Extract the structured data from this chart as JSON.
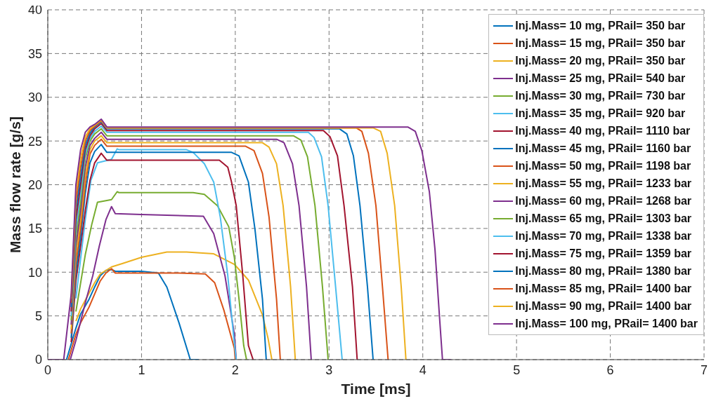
{
  "chart_data": {
    "type": "line",
    "xlabel": "Time [ms]",
    "ylabel": "Mass flow rate [g/s]",
    "xlim": [
      0,
      7
    ],
    "xticks": [
      0,
      1,
      2,
      3,
      4,
      5,
      6,
      7
    ],
    "ylim": [
      0,
      40
    ],
    "yticks": [
      0,
      5,
      10,
      15,
      20,
      25,
      30,
      35,
      40
    ],
    "grid": true,
    "legend": "top right",
    "marker": "none",
    "line_style": "solid",
    "series": [
      {
        "name": "Inj.Mass= 10 mg, PRail= 350 bar",
        "color": "#0072bd",
        "x": [
          0.2,
          0.3,
          0.35,
          0.44,
          0.5,
          0.56,
          0.62,
          0.68,
          0.72,
          1.0,
          1.18,
          1.27,
          1.4,
          1.52,
          1.61
        ],
        "values": [
          0,
          3.6,
          5.2,
          6.9,
          8.3,
          9.6,
          10.2,
          10.3,
          10.1,
          10.1,
          9.9,
          8.3,
          4.2,
          0,
          0
        ]
      },
      {
        "name": "Inj.Mass= 15 mg, PRail= 350 bar",
        "color": "#d95319",
        "x": [
          0.22,
          0.3,
          0.35,
          0.44,
          0.5,
          0.56,
          0.62,
          0.68,
          0.72,
          1.0,
          1.4,
          1.68,
          1.78,
          1.88,
          1.99,
          2.0
        ],
        "values": [
          0,
          2.9,
          4.2,
          6.0,
          7.5,
          9.0,
          9.9,
          10.4,
          9.9,
          9.9,
          9.9,
          9.8,
          8.8,
          5.6,
          1.3,
          0
        ]
      },
      {
        "name": "Inj.Mass= 20 mg, PRail= 350 bar",
        "color": "#edb120",
        "x": [
          0.3,
          0.35,
          0.44,
          0.5,
          0.56,
          0.68,
          0.8,
          1.0,
          1.27,
          1.48,
          1.77,
          1.99,
          2.14,
          2.29,
          2.35,
          2.39
        ],
        "values": [
          4.4,
          5.8,
          7.6,
          8.8,
          9.8,
          10.6,
          11,
          11.7,
          12.3,
          12.3,
          12.1,
          10.9,
          9.1,
          5.1,
          2.4,
          0
        ]
      },
      {
        "name": "Inj.Mass= 25 mg, PRail= 540 bar",
        "color": "#7e2f8e",
        "x": [
          0.24,
          0.3,
          0.4,
          0.48,
          0.55,
          0.62,
          0.68,
          0.72,
          1.0,
          1.66,
          1.77,
          1.89,
          1.99,
          2.01
        ],
        "values": [
          0,
          2.2,
          6.5,
          9.6,
          13,
          16,
          17.5,
          16.7,
          16.6,
          16.4,
          14.4,
          9.6,
          2.9,
          0
        ]
      },
      {
        "name": "Inj.Mass= 30 mg, PRail= 730 bar",
        "color": "#77ac30",
        "x": [
          0.3,
          0.4,
          0.47,
          0.53,
          0.68,
          0.74,
          0.76,
          1.0,
          1.55,
          1.67,
          1.81,
          1.93,
          1.99,
          2.04,
          2.09,
          2.12
        ],
        "values": [
          5.5,
          12,
          15.5,
          18,
          18.3,
          19.2,
          19.1,
          19.1,
          19.1,
          18.9,
          17.6,
          15.2,
          11.7,
          6.9,
          1.6,
          0
        ]
      },
      {
        "name": "Inj.Mass= 35 mg, PRail= 920 bar",
        "color": "#4dbeee",
        "x": [
          0.3,
          0.4,
          0.46,
          0.53,
          0.68,
          0.74,
          0.76,
          1.0,
          1.48,
          1.55,
          1.67,
          1.77,
          1.84,
          1.92,
          1.98,
          2.01
        ],
        "values": [
          7,
          16,
          20.5,
          22.5,
          22.9,
          24.1,
          24.0,
          24.0,
          24.0,
          23.7,
          22.4,
          20.3,
          16.3,
          9.6,
          2.9,
          0
        ]
      },
      {
        "name": "Inj.Mass= 40 mg, PRail= 1110 bar",
        "color": "#a2142f",
        "x": [
          0.25,
          0.3,
          0.35,
          0.4,
          0.45,
          0.5,
          0.57,
          0.63,
          1.83,
          1.92,
          1.96,
          2.01,
          2.08,
          2.14,
          2.19
        ],
        "values": [
          2,
          9,
          13,
          17,
          20.5,
          22.5,
          23.6,
          22.8,
          22.8,
          22.0,
          20.3,
          17.6,
          9.6,
          1.6,
          0
        ]
      },
      {
        "name": "Inj.Mass= 45 mg, PRail= 1160 bar",
        "color": "#0072bd",
        "x": [
          0.25,
          0.3,
          0.35,
          0.4,
          0.45,
          0.5,
          0.57,
          0.63,
          1.96,
          2.04,
          2.14,
          2.21,
          2.29,
          2.33
        ],
        "values": [
          2.5,
          10,
          14,
          19,
          22.5,
          23.8,
          24.6,
          23.7,
          23.7,
          23.3,
          20.3,
          14.9,
          6.9,
          0
        ]
      },
      {
        "name": "Inj.Mass= 50 mg, PRail= 1198 bar",
        "color": "#d95319",
        "x": [
          0.25,
          0.3,
          0.35,
          0.4,
          0.45,
          0.5,
          0.57,
          0.63,
          2.11,
          2.2,
          2.29,
          2.36,
          2.44,
          2.48
        ],
        "values": [
          3,
          11,
          15,
          20,
          23.5,
          24.5,
          25.2,
          24.4,
          24.4,
          23.9,
          21.3,
          16.3,
          6.9,
          0
        ]
      },
      {
        "name": "Inj.Mass= 55 mg, PRail= 1233 bar",
        "color": "#edb120",
        "x": [
          0.25,
          0.3,
          0.35,
          0.4,
          0.45,
          0.5,
          0.57,
          0.63,
          2.29,
          2.36,
          2.44,
          2.51,
          2.59,
          2.64
        ],
        "values": [
          3.5,
          12,
          16,
          21,
          24,
          25,
          25.6,
          24.8,
          24.8,
          24.3,
          22.4,
          17.6,
          8.3,
          0
        ]
      },
      {
        "name": "Inj.Mass= 60 mg, PRail= 1268 bar",
        "color": "#7e2f8e",
        "x": [
          0.25,
          0.3,
          0.35,
          0.4,
          0.45,
          0.5,
          0.57,
          0.63,
          2.44,
          2.52,
          2.61,
          2.68,
          2.76,
          2.81
        ],
        "values": [
          4,
          13,
          17,
          22,
          24.5,
          25.3,
          26.0,
          25.2,
          25.2,
          24.8,
          22.4,
          17.6,
          8.3,
          0
        ]
      },
      {
        "name": "Inj.Mass= 65 mg, PRail= 1303 bar",
        "color": "#77ac30",
        "x": [
          0.25,
          0.3,
          0.35,
          0.4,
          0.45,
          0.5,
          0.57,
          0.63,
          2.62,
          2.7,
          2.77,
          2.85,
          2.93,
          2.99
        ],
        "values": [
          4.5,
          14,
          18,
          23,
          25,
          25.8,
          26.4,
          25.6,
          25.6,
          25.1,
          23.2,
          17.6,
          8.3,
          0
        ]
      },
      {
        "name": "Inj.Mass= 70 mg, PRail= 1338 bar",
        "color": "#4dbeee",
        "x": [
          0.25,
          0.3,
          0.35,
          0.4,
          0.45,
          0.5,
          0.57,
          0.63,
          2.78,
          2.84,
          2.92,
          2.99,
          3.07,
          3.14
        ],
        "values": [
          5,
          15,
          19,
          23.5,
          25.3,
          26.1,
          26.7,
          26.0,
          26.0,
          25.4,
          23.2,
          17.6,
          8.3,
          0
        ]
      },
      {
        "name": "Inj.Mass= 75 mg, PRail= 1359 bar",
        "color": "#a2142f",
        "x": [
          0.25,
          0.3,
          0.35,
          0.4,
          0.45,
          0.5,
          0.57,
          0.63,
          2.94,
          3.01,
          3.09,
          3.16,
          3.25,
          3.3
        ],
        "values": [
          5.5,
          16,
          20,
          24,
          25.6,
          26.4,
          27.0,
          26.2,
          26.2,
          25.5,
          23.3,
          17.6,
          8.3,
          0
        ]
      },
      {
        "name": "Inj.Mass= 80 mg, PRail= 1380 bar",
        "color": "#0072bd",
        "x": [
          0.25,
          0.3,
          0.35,
          0.4,
          0.45,
          0.5,
          0.57,
          0.63,
          3.11,
          3.19,
          3.26,
          3.33,
          3.41,
          3.47
        ],
        "values": [
          6,
          17,
          21,
          24.5,
          25.9,
          26.6,
          27.2,
          26.4,
          26.4,
          25.8,
          23.3,
          17.6,
          8.3,
          0
        ]
      },
      {
        "name": "Inj.Mass= 85 mg, PRail= 1400 bar",
        "color": "#d95319",
        "x": [
          0.25,
          0.3,
          0.35,
          0.4,
          0.45,
          0.5,
          0.57,
          0.63,
          3.29,
          3.35,
          3.42,
          3.5,
          3.57,
          3.63
        ],
        "values": [
          6.5,
          18,
          22,
          25,
          26.2,
          26.7,
          27.3,
          26.5,
          26.5,
          26.1,
          23.6,
          17.6,
          8.3,
          0
        ]
      },
      {
        "name": "Inj.Mass= 90 mg, PRail= 1400 bar",
        "color": "#edb120",
        "x": [
          0.25,
          0.3,
          0.35,
          0.4,
          0.45,
          0.5,
          0.57,
          0.63,
          3.47,
          3.55,
          3.62,
          3.7,
          3.77,
          3.82
        ],
        "values": [
          7,
          19,
          23,
          25.5,
          26.4,
          26.8,
          27.4,
          26.5,
          26.5,
          26.1,
          23.6,
          17.6,
          8.3,
          0
        ]
      },
      {
        "name": "Inj.Mass= 100 mg, PRail= 1400 bar",
        "color": "#7e2f8e",
        "x": [
          0,
          0.17,
          0.25,
          0.3,
          0.35,
          0.4,
          0.45,
          0.5,
          0.57,
          0.63,
          3.84,
          3.92,
          3.99,
          4.07,
          4.13,
          4.18,
          4.21,
          4.3
        ],
        "values": [
          0,
          0,
          7.5,
          20,
          24,
          26,
          26.6,
          26.9,
          27.5,
          26.6,
          26.6,
          26.1,
          23.9,
          19.2,
          12.6,
          4.6,
          0,
          0
        ]
      }
    ]
  }
}
